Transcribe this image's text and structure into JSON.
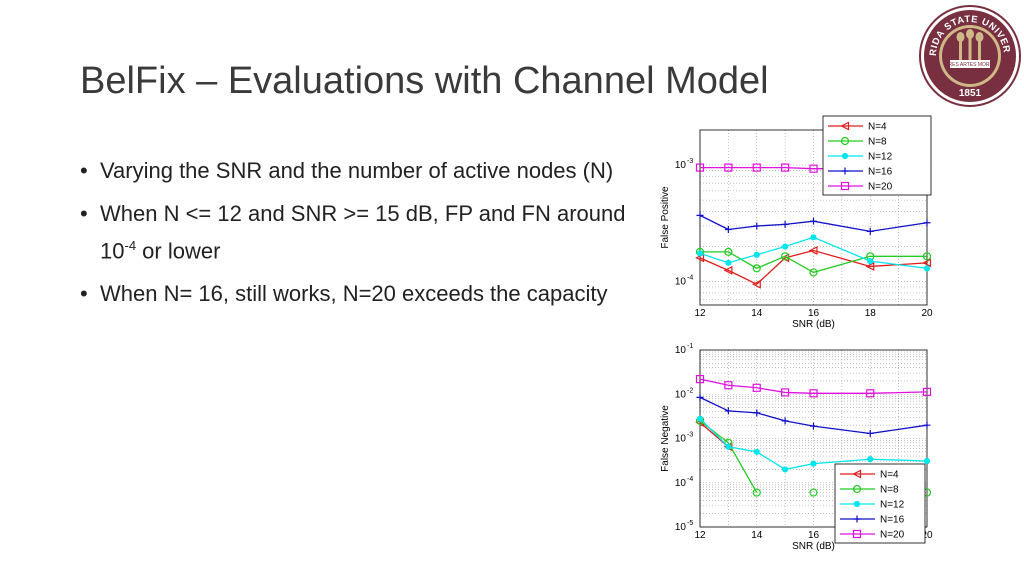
{
  "slide": {
    "title": "BelFix – Evaluations with Channel Model",
    "bullets": [
      {
        "text": "Varying the SNR and the number of active nodes (N)"
      },
      {
        "pre": "When N <= 12 and SNR >= 15 dB, FP and FN around 10",
        "sup": "-4",
        "post": " or lower"
      },
      {
        "text": "When N= 16, still works, N=20 exceeds the capacity"
      }
    ]
  },
  "logo": {
    "ring_text": "FLORIDA STATE UNIVERSITY",
    "year": "1851",
    "ribbon": [
      "VIRES",
      "ARTES",
      "MORES"
    ],
    "colors": {
      "garnet": "#782f40",
      "gold": "#ceb888"
    }
  },
  "chart_data": [
    {
      "type": "line",
      "xlabel": "SNR (dB)",
      "ylabel": "False Positive",
      "xlim": [
        12,
        20
      ],
      "ylim_log10": [
        -4.2,
        -2.7
      ],
      "y_scale": "log",
      "x_ticks": [
        "12",
        "14",
        "16",
        "18",
        "20"
      ],
      "y_ticks": [
        {
          "base": "10",
          "exp": "-3",
          "v": -3
        },
        {
          "base": "10",
          "exp": "-4",
          "v": -4
        }
      ],
      "grid": true,
      "legend_position": "top-right",
      "series": [
        {
          "name": "N=4",
          "color": "#e01e1e",
          "marker": "triangle-left",
          "x": [
            12,
            13,
            14,
            15,
            16,
            18,
            20
          ],
          "y": [
            0.00016,
            0.000125,
            9.5e-05,
            0.00016,
            0.000185,
            0.000135,
            0.000145
          ]
        },
        {
          "name": "N=8",
          "color": "#22cc22",
          "marker": "circle",
          "x": [
            12,
            13,
            14,
            15,
            16,
            18,
            20
          ],
          "y": [
            0.00018,
            0.00018,
            0.00013,
            0.000165,
            0.00012,
            0.000165,
            0.000165
          ]
        },
        {
          "name": "N=12",
          "color": "#00e5ee",
          "marker": "star",
          "x": [
            12,
            13,
            14,
            15,
            16,
            18,
            20
          ],
          "y": [
            0.000175,
            0.000145,
            0.00017,
            0.0002,
            0.00024,
            0.00015,
            0.00013
          ]
        },
        {
          "name": "N=16",
          "color": "#1010c8",
          "marker": "plus",
          "x": [
            12,
            13,
            14,
            15,
            16,
            18,
            20
          ],
          "y": [
            0.00037,
            0.00028,
            0.0003,
            0.00031,
            0.00033,
            0.00027,
            0.00032
          ]
        },
        {
          "name": "N=20",
          "color": "#e010e0",
          "marker": "square",
          "x": [
            12,
            13,
            14,
            15,
            16,
            18,
            20
          ],
          "y": [
            0.00095,
            0.00095,
            0.00095,
            0.00095,
            0.00093,
            0.00093,
            0.001
          ]
        }
      ]
    },
    {
      "type": "line",
      "xlabel": "SNR (dB)",
      "ylabel": "False Negative",
      "xlim": [
        12,
        20
      ],
      "ylim_log10": [
        -5,
        -1
      ],
      "y_scale": "log",
      "x_ticks": [
        "12",
        "14",
        "16",
        "18",
        "20"
      ],
      "y_ticks": [
        {
          "base": "10",
          "exp": "-1",
          "v": -1
        },
        {
          "base": "10",
          "exp": "-2",
          "v": -2
        },
        {
          "base": "10",
          "exp": "-3",
          "v": -3
        },
        {
          "base": "10",
          "exp": "-4",
          "v": -4
        },
        {
          "base": "10",
          "exp": "-5",
          "v": -5
        }
      ],
      "grid": true,
      "legend_position": "bottom-right",
      "series": [
        {
          "name": "N=4",
          "color": "#e01e1e",
          "marker": "triangle-left",
          "x": [
            12,
            13
          ],
          "y": [
            0.0023,
            0.00065
          ]
        },
        {
          "name": "N=8",
          "color": "#22cc22",
          "marker": "circle",
          "x": [
            12,
            13,
            14,
            16,
            18,
            20
          ],
          "y": [
            0.0025,
            0.0008,
            6e-05,
            6e-05,
            6e-05,
            6e-05
          ]
        },
        {
          "name": "N=12",
          "color": "#00e5ee",
          "marker": "star",
          "x": [
            12,
            13,
            14,
            15,
            16,
            18,
            20
          ],
          "y": [
            0.0028,
            0.00065,
            0.0005,
            0.0002,
            0.00027,
            0.00034,
            0.00031
          ]
        },
        {
          "name": "N=16",
          "color": "#1010c8",
          "marker": "plus",
          "x": [
            12,
            13,
            14,
            15,
            16,
            18,
            20
          ],
          "y": [
            0.0085,
            0.0042,
            0.0038,
            0.0025,
            0.0019,
            0.0013,
            0.002
          ]
        },
        {
          "name": "N=20",
          "color": "#e010e0",
          "marker": "square",
          "x": [
            12,
            13,
            14,
            15,
            16,
            18,
            20
          ],
          "y": [
            0.022,
            0.016,
            0.014,
            0.011,
            0.0105,
            0.0105,
            0.0113
          ]
        }
      ]
    }
  ]
}
